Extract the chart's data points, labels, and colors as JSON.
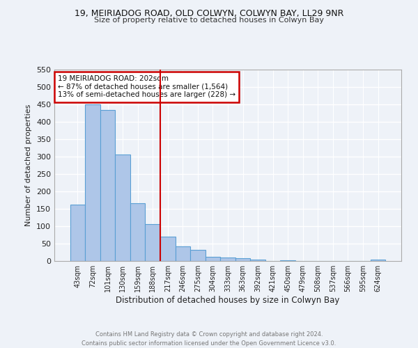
{
  "title1": "19, MEIRIADOG ROAD, OLD COLWYN, COLWYN BAY, LL29 9NR",
  "title2": "Size of property relative to detached houses in Colwyn Bay",
  "xlabel": "Distribution of detached houses by size in Colwyn Bay",
  "ylabel": "Number of detached properties",
  "bin_labels": [
    "43sqm",
    "72sqm",
    "101sqm",
    "130sqm",
    "159sqm",
    "188sqm",
    "217sqm",
    "246sqm",
    "275sqm",
    "304sqm",
    "333sqm",
    "363sqm",
    "392sqm",
    "421sqm",
    "450sqm",
    "479sqm",
    "508sqm",
    "537sqm",
    "566sqm",
    "595sqm",
    "624sqm"
  ],
  "bar_values": [
    163,
    450,
    435,
    306,
    167,
    107,
    71,
    43,
    33,
    12,
    11,
    9,
    4,
    0,
    2,
    1,
    1,
    0,
    0,
    0,
    4
  ],
  "bar_color": "#aec6e8",
  "bar_edge_color": "#5a9fd4",
  "vline_x": 5.5,
  "vline_color": "#cc0000",
  "annotation_line1": "19 MEIRIADOG ROAD: 202sqm",
  "annotation_line2": "← 87% of detached houses are smaller (1,564)",
  "annotation_line3": "13% of semi-detached houses are larger (228) →",
  "annotation_box_color": "#cc0000",
  "annotation_bg": "#ffffff",
  "ylim": [
    0,
    550
  ],
  "yticks": [
    0,
    50,
    100,
    150,
    200,
    250,
    300,
    350,
    400,
    450,
    500,
    550
  ],
  "footer": "Contains HM Land Registry data © Crown copyright and database right 2024.\nContains public sector information licensed under the Open Government Licence v3.0.",
  "background_color": "#eef2f8",
  "plot_bg_color": "#eef2f8",
  "grid_color": "#ffffff"
}
